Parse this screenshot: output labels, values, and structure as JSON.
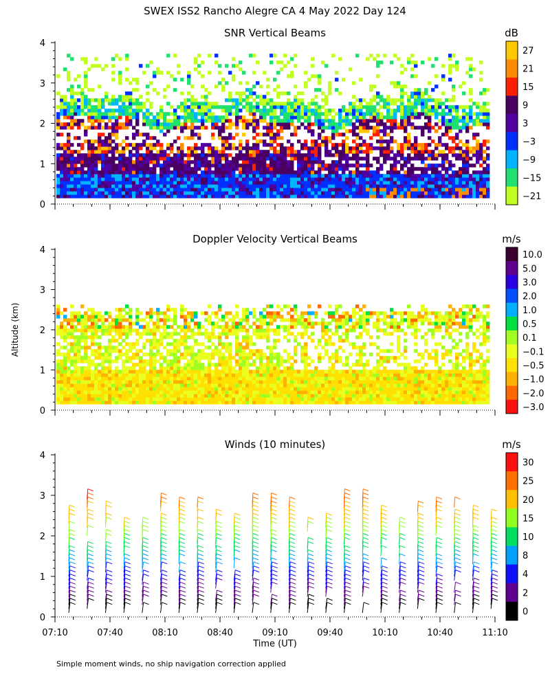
{
  "title": "SWEX ISS2 Rancho Alegre CA   4 May 2022 Day 124",
  "y_axis_label": "Altitude (km)",
  "x_axis_label": "Time (UT)",
  "footnote": "Simple moment winds, no ship navigation correction applied",
  "chart_data": [
    {
      "type": "heatmap",
      "title": "SNR Vertical Beams",
      "ylabel": "Altitude (km)",
      "ylim": [
        0,
        4
      ],
      "yticks": [
        "0",
        "1",
        "2",
        "3",
        "4"
      ],
      "x_range": [
        "07:10",
        "11:10"
      ],
      "colorbar": {
        "unit": "dB",
        "labels": [
          "27",
          "21",
          "15",
          "9",
          "3",
          "−3",
          "−9",
          "−15",
          "−21"
        ],
        "colors": [
          "#ffc800",
          "#ff8c00",
          "#ff2000",
          "#4a0060",
          "#5000a0",
          "#0030ff",
          "#00b4ff",
          "#20e070",
          "#c0ff20"
        ]
      }
    },
    {
      "type": "heatmap",
      "title": "Doppler Velocity Vertical Beams",
      "ylabel": "Altitude (km)",
      "ylim": [
        0,
        4
      ],
      "yticks": [
        "0",
        "1",
        "2",
        "3",
        "4"
      ],
      "x_range": [
        "07:10",
        "11:10"
      ],
      "colorbar": {
        "unit": "m/s",
        "labels": [
          "10.0",
          "5.0",
          "3.0",
          "2.0",
          "1.0",
          "0.5",
          "0.1",
          "−0.1",
          "−0.5",
          "−1.0",
          "−2.0",
          "−3.0"
        ],
        "colors": [
          "#3a0030",
          "#600090",
          "#2a00e0",
          "#0050ff",
          "#00b0ff",
          "#00e040",
          "#a0ff20",
          "#e8ff20",
          "#ffe000",
          "#ffb000",
          "#ff6800",
          "#ff1010"
        ]
      }
    },
    {
      "type": "scatter",
      "title": "Winds (10 minutes)",
      "ylabel": "Altitude (km)",
      "ylim": [
        0,
        4
      ],
      "yticks": [
        "0",
        "1",
        "2",
        "3",
        "4"
      ],
      "xlabel": "Time (UT)",
      "xticks": [
        "07:10",
        "07:40",
        "08:10",
        "08:40",
        "09:10",
        "09:40",
        "10:10",
        "10:40",
        "11:10"
      ],
      "colorbar": {
        "unit": "m/s",
        "labels": [
          "30",
          "25",
          "20",
          "15",
          "10",
          "8",
          "4",
          "2",
          "0"
        ],
        "colors": [
          "#ff1010",
          "#ff7000",
          "#ffc000",
          "#90ff20",
          "#00e060",
          "#00a0ff",
          "#1010ff",
          "#600090",
          "#000000"
        ]
      }
    }
  ]
}
